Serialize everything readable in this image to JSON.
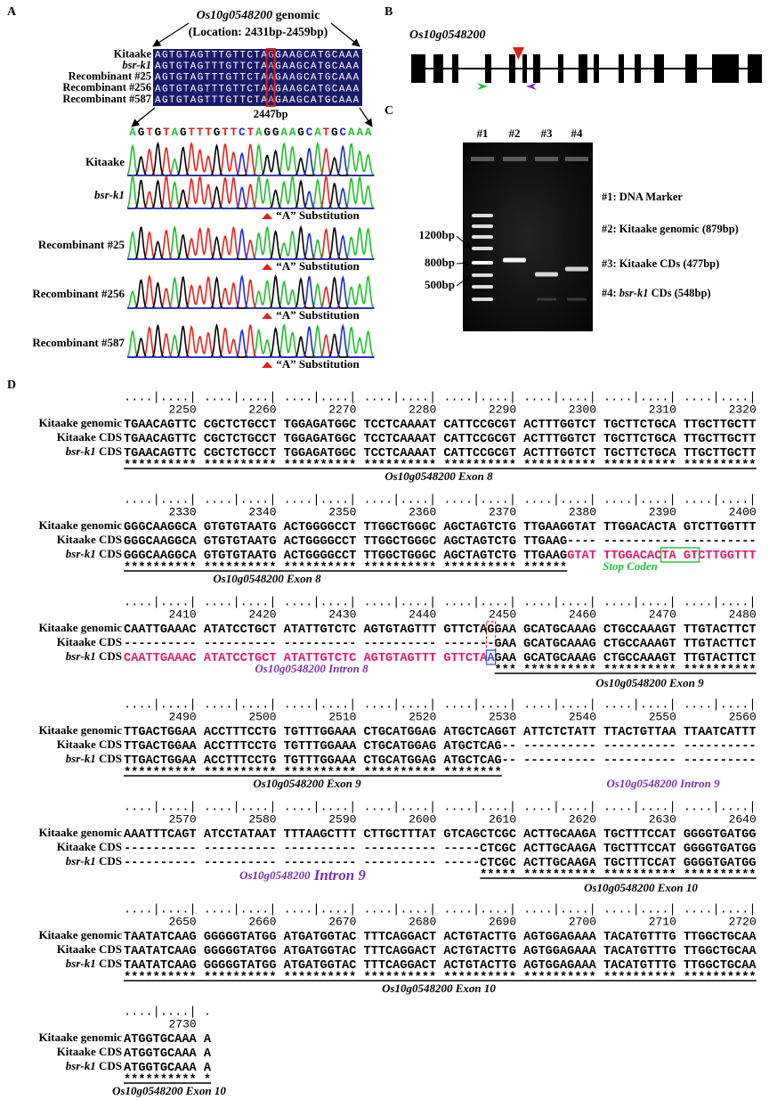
{
  "panel_a": {
    "label": "A",
    "title": [
      {
        "text": "Os10g0548200",
        "italic": true
      },
      {
        "text": " genomic"
      }
    ],
    "location": "(Location: 2431bp-2459bp)",
    "alignment": [
      {
        "name": "Kitaake",
        "pre": "AGTGTAGTTTGTTCTA",
        "site": "G",
        "post": "GAAGCATGCAAA"
      },
      {
        "name": "bsr-k1",
        "italic": true,
        "pre": "AGTGTAGTTTGTTCTA",
        "site": "A",
        "post": "GAAGCATGCAAA"
      },
      {
        "name": "Recombinant #25",
        "pre": "AGTGTAGTTTGTTCTA",
        "site": "A",
        "post": "GAAGCATGCAAA"
      },
      {
        "name": "Recombinant #256",
        "pre": "AGTGTAGTTTGTTCTA",
        "site": "A",
        "post": "GAAGCATGCAAA"
      },
      {
        "name": "Recombinant #587",
        "pre": "AGTGTAGTTTGTTCTA",
        "site": "A",
        "post": "GAAGCATGCAAA"
      }
    ],
    "site_label": "2447bp",
    "trace_sequence": "AGTGTAGTTTGTTCTAGGAAGCATGCAAA",
    "substitution": "“A” Substitution"
  },
  "panel_b": {
    "label": "B",
    "gene": "Os10g0548200"
  },
  "panel_c": {
    "label": "C",
    "lanes": [
      "#1",
      "#2",
      "#3",
      "#4"
    ],
    "size_markers": [
      "1200bp",
      "800bp",
      "500bp"
    ],
    "legend": [
      [
        {
          "text": "#1: DNA Marker"
        }
      ],
      [
        {
          "text": "#2: Kitaake genomic (879bp)"
        }
      ],
      [
        {
          "text": "#3: Kitaake CDs (477bp)"
        }
      ],
      [
        {
          "text": "#4: "
        },
        {
          "text": "bsr-k1",
          "italic": true
        },
        {
          "text": " CDs (548bp)"
        }
      ]
    ]
  },
  "panel_d": {
    "label": "D",
    "row_names": [
      [
        {
          "text": "Kitaake genomic"
        }
      ],
      [
        {
          "text": "Kitaake CDS"
        }
      ],
      [
        {
          "text": "bsr-k1",
          "italic": true
        },
        {
          "text": " CDS"
        }
      ]
    ],
    "blocks": [
      {
        "ruler": "....|....| ....|....| ....|....| ....|....| ....|....| ....|....| ....|....| ....|....|",
        "numbers": [
          2250,
          2260,
          2270,
          2280,
          2290,
          2300,
          2310,
          2320
        ],
        "rows": [
          [
            {
              "text": "TGAACAGTTC CGCTCTGCCT TGGAGATGGC TCCTCAAAAT CATTCCGCGT ACTTTGGTCT TGCTTCTGCA TTGCTTGCTT"
            }
          ],
          [
            {
              "text": "TGAACAGTTC CGCTCTGCCT TGGAGATGGC TCCTCAAAAT CATTCCGCGT ACTTTGGTCT TGCTTCTGCA TTGCTTGCTT"
            }
          ],
          [
            {
              "text": "TGAACAGTTC CGCTCTGCCT TGGAGATGGC TCCTCAAAAT CATTCCGCGT ACTTTGGTCT TGCTTCTGCA TTGCTTGCTT"
            }
          ]
        ],
        "stars": "********** ********** ********** ********** ********** ********** ********** **********",
        "annotations": [
          {
            "parts": [
              {
                "text": "Os10g0548200"
              },
              {
                "text": " Exon 8"
              }
            ],
            "color": "#000000"
          }
        ]
      },
      {
        "ruler": "....|....| ....|....| ....|....| ....|....| ....|....| ....|....| ....|....| ....|....|",
        "numbers": [
          2330,
          2340,
          2350,
          2360,
          2370,
          2380,
          2390,
          2400
        ],
        "rows": [
          [
            {
              "text": "GGGCAAGGCA GTGTGTAATG ACTGGGGCCT TTGGCTGGGC AGCTAGTCTG TTGAAGGTAT TTGGACACTA GTCTTGGTTT"
            }
          ],
          [
            {
              "text": "GGGCAAGGCA GTGTGTAATG ACTGGGGCCT TTGGCTGGGC AGCTAGTCTG TTGAAG---- ---------- ----------"
            }
          ],
          [
            {
              "text": "GGGCAAGGCA GTGTGTAATG ACTGGGGCCT TTGGCTGGGC AGCTAGTCTG TTGAAG"
            },
            {
              "text": "GTAT TTGGACACTA GTCTTGGTTT",
              "color": "#e5176e"
            }
          ]
        ],
        "stars": "********** ********** ********** ********** ********** ******",
        "annotations": [
          {
            "parts": [
              {
                "text": "Os10g0548200"
              },
              {
                "text": " Exon 8"
              }
            ],
            "color": "#000000"
          },
          {
            "parts": [
              {
                "text": "Stop Coden"
              }
            ],
            "color": "#22c040"
          }
        ]
      },
      {
        "ruler": "....|....| ....|....| ....|....| ....|....| ....|....| ....|....| ....|....| ....|....|",
        "numbers": [
          2410,
          2420,
          2430,
          2440,
          2450,
          2460,
          2470,
          2480
        ],
        "rows": [
          [
            {
              "text": "CAATTGAAAC ATATCCTGCT ATATTGTCTC AGTGTAGTTT GTTCTAGGAA GCATGCAAAG CTGCCAAAGT TTGTACTTCT"
            }
          ],
          [
            {
              "text": "---------- ---------- ---------- ---------- -------GAA GCATGCAAAG CTGCCAAAGT TTGTACTTCT"
            }
          ],
          [
            {
              "text": "CAATTGAAAC ATATCCTGCT ATATTGTCTC AGTGTAGTTT GTTCTA",
              "color": "#e5176e"
            },
            {
              "text": "A",
              "color": "#3b4fd6"
            },
            {
              "text": "GAA GCATGCAAAG CTGCCAAAGT TTGTACTTCT"
            }
          ]
        ],
        "stars": "                                                   *** ********** ********** **********",
        "annotations": [
          {
            "parts": [
              {
                "text": "Os10g0548200"
              },
              {
                "text": " Intron 8"
              }
            ],
            "color": "#7a2fb0"
          },
          {
            "parts": [
              {
                "text": "Os10g0548200"
              },
              {
                "text": " Exon 9"
              }
            ],
            "color": "#000000"
          }
        ]
      },
      {
        "ruler": "....|....| ....|....| ....|....| ....|....| ....|....| ....|....| ....|....| ....|....|",
        "numbers": [
          2490,
          2500,
          2510,
          2520,
          2530,
          2540,
          2550,
          2560
        ],
        "rows": [
          [
            {
              "text": "TTGACTGGAA ACCTTTCCTG TGTTTGGAAA CTGCATGGAG ATGCTCAGGT ATTCTCTATT TTACTGTTAA TTAATCATTT"
            }
          ],
          [
            {
              "text": "TTGACTGGAA ACCTTTCCTG TGTTTGGAAA CTGCATGGAG ATGCTCAG-- ---------- ---------- ----------"
            }
          ],
          [
            {
              "text": "TTGACTGGAA ACCTTTCCTG TGTTTGGAAA CTGCATGGAG ATGCTCAG-- ---------- ---------- ----------"
            }
          ]
        ],
        "stars": "********** ********** ********** ********** ********",
        "annotations": [
          {
            "parts": [
              {
                "text": "Os10g0548200"
              },
              {
                "text": " Exon 9"
              }
            ],
            "color": "#000000"
          },
          {
            "parts": [
              {
                "text": "Os10g0548200"
              },
              {
                "text": " Intron 9"
              }
            ],
            "color": "#7a2fb0"
          }
        ]
      },
      {
        "ruler": "....|....| ....|....| ....|....| ....|....| ....|....| ....|....| ....|....| ....|....|",
        "numbers": [
          2570,
          2580,
          2590,
          2600,
          2610,
          2620,
          2630,
          2640
        ],
        "rows": [
          [
            {
              "text": "AAATTTCAGT ATCCTATAAT TTTAAGCTTT CTTGCTTTAT GTCAGCTCGC ACTTGCAAGA TGCTTTCCAT GGGGTGATGG"
            }
          ],
          [
            {
              "text": "---------- ---------- ---------- ---------- -----CTCGC ACTTGCAAGA TGCTTTCCAT GGGGTGATGG"
            }
          ],
          [
            {
              "text": "---------- ---------- ---------- ---------- -----CTCGC ACTTGCAAGA TGCTTTCCAT GGGGTGATGG"
            }
          ]
        ],
        "stars": "                                                 ***** ********** ********** **********",
        "annotations": [
          {
            "parts": [
              {
                "text": "Os10g0548200"
              },
              {
                "text": " Intron 9"
              }
            ],
            "color": "#7a2fb0"
          },
          {
            "parts": [
              {
                "text": "Os10g0548200"
              },
              {
                "text": " Exon 10"
              }
            ],
            "color": "#000000"
          }
        ]
      },
      {
        "ruler": "....|....| ....|....| ....|....| ....|....| ....|....| ....|....| ....|....| ....|....|",
        "numbers": [
          2650,
          2660,
          2670,
          2680,
          2690,
          2700,
          2710,
          2720
        ],
        "rows": [
          [
            {
              "text": "TAATATCAAG GGGGGTATGG ATGATGGTAC TTTCAGGACT ACTGTACTTG AGTGGAGAAA TACATGTTTG TTGGCTGCAA"
            }
          ],
          [
            {
              "text": "TAATATCAAG GGGGGTATGG ATGATGGTAC TTTCAGGACT ACTGTACTTG AGTGGAGAAA TACATGTTTG TTGGCTGCAA"
            }
          ],
          [
            {
              "text": "TAATATCAAG GGGGGTATGG ATGATGGTAC TTTCAGGACT ACTGTACTTG AGTGGAGAAA TACATGTTTG TTGGCTGCAA"
            }
          ]
        ],
        "stars": "********** ********** ********** ********** ********** ********** ********** **********",
        "annotations": [
          {
            "parts": [
              {
                "text": "Os10g0548200"
              },
              {
                "text": " Exon 10"
              }
            ],
            "color": "#000000"
          }
        ]
      },
      {
        "ruler": "....|....| .",
        "numbers": [
          2730
        ],
        "rows": [
          [
            {
              "text": "ATGGTGCAAA A"
            }
          ],
          [
            {
              "text": "ATGGTGCAAA A"
            }
          ],
          [
            {
              "text": "ATGGTGCAAA A"
            }
          ]
        ],
        "stars": "********** *",
        "annotations": [
          {
            "parts": [
              {
                "text": "Os10g0548200"
              },
              {
                "text": " Exon 10"
              }
            ],
            "color": "#000000"
          }
        ]
      }
    ]
  }
}
